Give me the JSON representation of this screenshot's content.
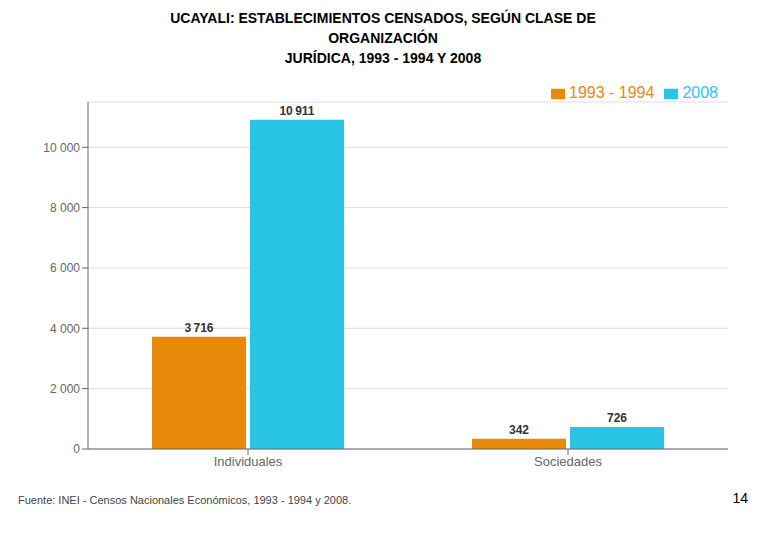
{
  "chart_data": {
    "type": "bar",
    "title": "UCAYALI: ESTABLECIMIENTOS CENSADOS, SEGÚN CLASE DE\nORGANIZACIÓN\nJURÍDICA, 1993 - 1994 Y 2008",
    "categories": [
      "Individuales",
      "Sociedades"
    ],
    "series": [
      {
        "name": "1993 - 1994",
        "color": "#E8890A",
        "values": [
          3716,
          342
        ],
        "value_labels": [
          "3 716",
          "342"
        ]
      },
      {
        "name": "2008",
        "color": "#29C5E6",
        "values": [
          10911,
          726
        ],
        "value_labels": [
          "10 911",
          "726"
        ]
      }
    ],
    "ylim": [
      0,
      11500
    ],
    "yticks": [
      0,
      {
        "value": 2000,
        "label": "2 000"
      },
      {
        "value": 4000,
        "label": "4 000"
      },
      {
        "value": 6000,
        "label": "6 000"
      },
      {
        "value": 8000,
        "label": "8 000"
      },
      {
        "value": 10000,
        "label": "10 000"
      }
    ],
    "grid": true,
    "legend": "upper right",
    "data_labels": true,
    "annotations": [
      "Fuente:  INEI - Censos Nacionales Económicos, 1993 - 1994 y 2008.",
      "14"
    ]
  }
}
